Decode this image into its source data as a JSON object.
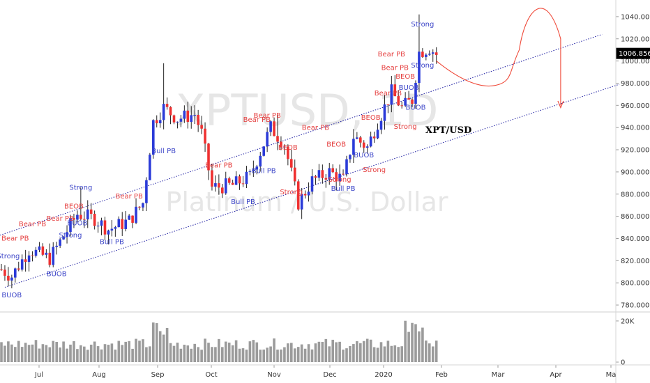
{
  "chart_data": {
    "type": "candlestick",
    "symbol_label": "XPT/USD",
    "watermark_symbol": "XPTUSD, 1D",
    "watermark_name": "Platinum / U.S. Dollar",
    "price_axis": {
      "ylim": [
        775,
        1055
      ],
      "ticks": [
        "780.000",
        "800.000",
        "820.000",
        "840.000",
        "860.000",
        "880.000",
        "900.000",
        "920.000",
        "940.000",
        "960.000",
        "980.000",
        "1000.000",
        "1020.000",
        "1040.000"
      ],
      "current_price": "1006.856",
      "current_value": 1006.856
    },
    "volume_axis": {
      "ylim": [
        0,
        22000
      ],
      "ticks": [
        "20K",
        "0"
      ]
    },
    "time_axis": {
      "labels": [
        "Jul",
        "Aug",
        "Sep",
        "Oct",
        "Nov",
        "Dec",
        "2020",
        "Feb",
        "Mar",
        "Apr",
        "Ma"
      ]
    },
    "colors": {
      "up": "#2b3bd8",
      "down": "#ef3030",
      "volume": "#9b9b9b",
      "channel": "#1a1aa0",
      "projection": "#ef4a3a",
      "label_blue": "#3d46c8",
      "label_red": "#e54040",
      "price_tag_bg": "#000000"
    },
    "annotations": [
      {
        "text": "Strong",
        "color": "blue",
        "day": 2,
        "price": 822
      },
      {
        "text": "BUOB",
        "color": "blue",
        "day": 3,
        "price": 787
      },
      {
        "text": "Bear PB",
        "color": "red",
        "day": 4,
        "price": 838
      },
      {
        "text": "Bear PB",
        "color": "red",
        "day": 9,
        "price": 851
      },
      {
        "text": "BUOB",
        "color": "blue",
        "day": 16,
        "price": 806
      },
      {
        "text": "Bear PB",
        "color": "red",
        "day": 17,
        "price": 856
      },
      {
        "text": "Strong",
        "color": "blue",
        "day": 20,
        "price": 841
      },
      {
        "text": "BEOB",
        "color": "red",
        "day": 21,
        "price": 867
      },
      {
        "text": "BUOB",
        "color": "blue",
        "day": 22,
        "price": 852
      },
      {
        "text": "Strong",
        "color": "blue",
        "day": 23,
        "price": 884
      },
      {
        "text": "Bull PB",
        "color": "blue",
        "day": 32,
        "price": 835
      },
      {
        "text": "Bear PB",
        "color": "red",
        "day": 37,
        "price": 876
      },
      {
        "text": "Bull PB",
        "color": "blue",
        "day": 47,
        "price": 917
      },
      {
        "text": "Bear PB",
        "color": "red",
        "day": 63,
        "price": 904
      },
      {
        "text": "Bull PB",
        "color": "blue",
        "day": 70,
        "price": 871
      },
      {
        "text": "Bear PB",
        "color": "red",
        "day": 74,
        "price": 945
      },
      {
        "text": "Bear PB",
        "color": "red",
        "day": 77,
        "price": 949
      },
      {
        "text": "Bull PB",
        "color": "blue",
        "day": 76,
        "price": 899
      },
      {
        "text": "BEOB",
        "color": "red",
        "day": 83,
        "price": 920
      },
      {
        "text": "Strong",
        "color": "red",
        "day": 84,
        "price": 880
      },
      {
        "text": "Bear PB",
        "color": "red",
        "day": 91,
        "price": 938
      },
      {
        "text": "BEOB",
        "color": "red",
        "day": 97,
        "price": 923
      },
      {
        "text": "Strong",
        "color": "red",
        "day": 98,
        "price": 891
      },
      {
        "text": "Bull PB",
        "color": "blue",
        "day": 99,
        "price": 883
      },
      {
        "text": "BEOB",
        "color": "red",
        "day": 107,
        "price": 947
      },
      {
        "text": "BUOB",
        "color": "blue",
        "day": 105,
        "price": 913
      },
      {
        "text": "Strong",
        "color": "red",
        "day": 108,
        "price": 900
      },
      {
        "text": "Bear PB",
        "color": "red",
        "day": 112,
        "price": 969
      },
      {
        "text": "Strong",
        "color": "red",
        "day": 117,
        "price": 939
      },
      {
        "text": "Bear PB",
        "color": "red",
        "day": 114,
        "price": 992
      },
      {
        "text": "Bear PB",
        "color": "red",
        "day": 113,
        "price": 1004
      },
      {
        "text": "BEOB",
        "color": "red",
        "day": 117,
        "price": 984
      },
      {
        "text": "BUOB",
        "color": "blue",
        "day": 118,
        "price": 974
      },
      {
        "text": "BUOB",
        "color": "blue",
        "day": 120,
        "price": 956
      },
      {
        "text": "Strong",
        "color": "blue",
        "day": 122,
        "price": 994
      },
      {
        "text": "Strong",
        "color": "blue",
        "day": 122,
        "price": 1031
      }
    ]
  }
}
